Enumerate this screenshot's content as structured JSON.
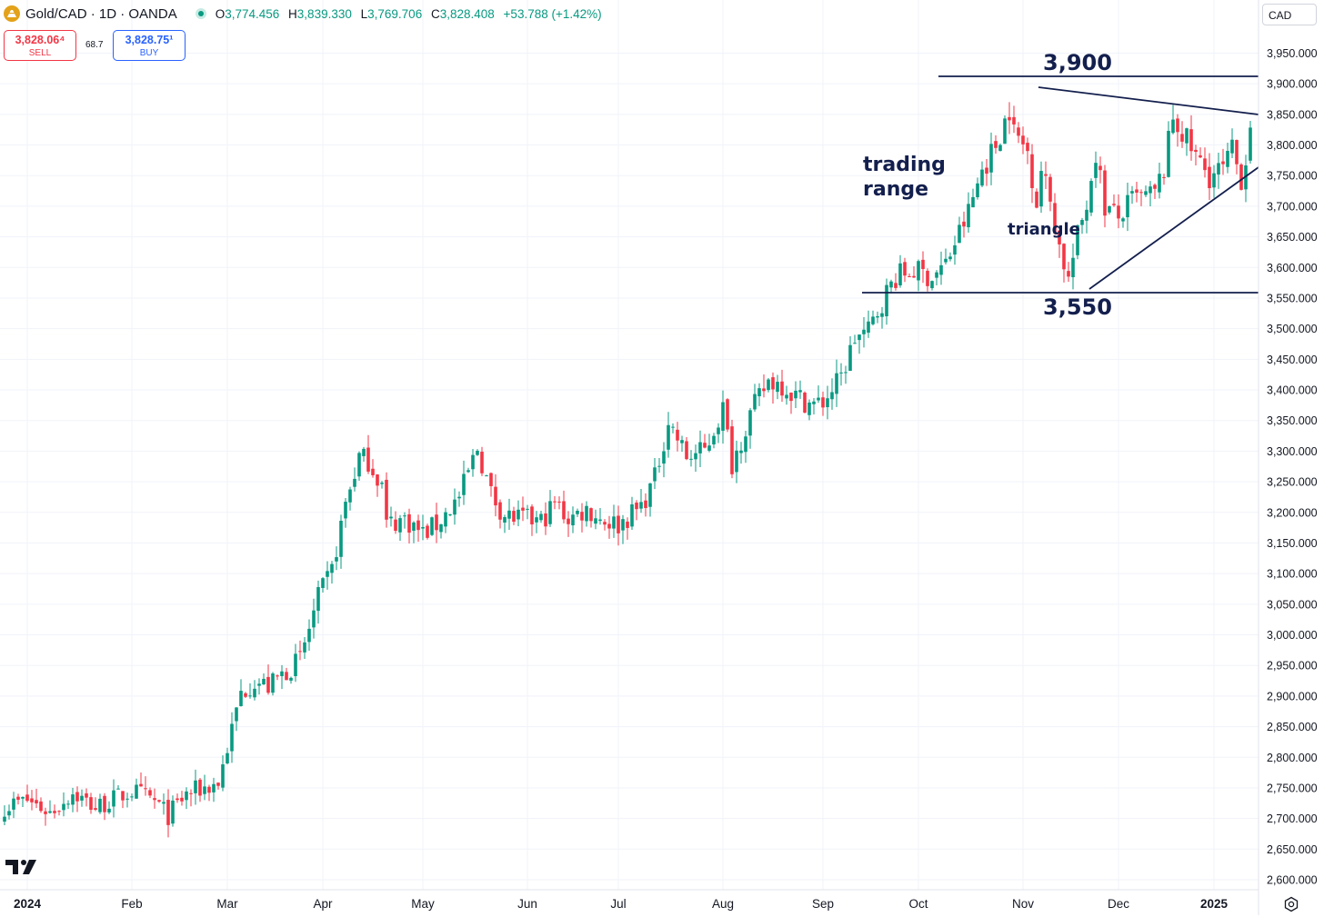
{
  "header": {
    "symbol": "Gold/CAD · 1D · OANDA",
    "open_key": "O",
    "open": "3,774.456",
    "high_key": "H",
    "high": "3,839.330",
    "low_key": "L",
    "low": "3,769.706",
    "close_key": "C",
    "close": "3,828.408",
    "change": "+53.788 (+1.42%)"
  },
  "trade": {
    "sell_price": "3,828.06⁴",
    "sell_label": "SELL",
    "spread": "68.7",
    "buy_price": "3,828.75¹",
    "buy_label": "BUY"
  },
  "currency": "CAD",
  "icons": {
    "logo": "gold-coin-icon",
    "brand": "tradingview-logo-icon",
    "settings": "gear-icon"
  },
  "colors": {
    "up": "#089981",
    "down": "#f23645",
    "annotation": "#131f4d",
    "grid": "#f0f3fa"
  },
  "chart_data": {
    "type": "candlestick",
    "ylim": [
      2580,
      3975
    ],
    "y_ticks": [
      "2,600.000",
      "2,650.000",
      "2,700.000",
      "2,750.000",
      "2,800.000",
      "2,850.000",
      "2,900.000",
      "2,950.000",
      "3,000.000",
      "3,050.000",
      "3,100.000",
      "3,150.000",
      "3,200.000",
      "3,250.000",
      "3,300.000",
      "3,350.000",
      "3,400.000",
      "3,450.000",
      "3,500.000",
      "3,550.000",
      "3,600.000",
      "3,650.000",
      "3,700.000",
      "3,750.000",
      "3,800.000",
      "3,850.000",
      "3,900.000",
      "3,950.000"
    ],
    "x_ticks": [
      {
        "label": "2024",
        "bold": true,
        "index": 5
      },
      {
        "label": "Feb",
        "bold": false,
        "index": 28
      },
      {
        "label": "Mar",
        "bold": false,
        "index": 49
      },
      {
        "label": "Apr",
        "bold": false,
        "index": 70
      },
      {
        "label": "May",
        "bold": false,
        "index": 92
      },
      {
        "label": "Jun",
        "bold": false,
        "index": 115
      },
      {
        "label": "Jul",
        "bold": false,
        "index": 135
      },
      {
        "label": "Aug",
        "bold": false,
        "index": 158
      },
      {
        "label": "Sep",
        "bold": false,
        "index": 180
      },
      {
        "label": "Oct",
        "bold": false,
        "index": 201
      },
      {
        "label": "Nov",
        "bold": false,
        "index": 224
      },
      {
        "label": "Dec",
        "bold": false,
        "index": 245
      },
      {
        "label": "2025",
        "bold": true,
        "index": 266
      }
    ],
    "anchors": [
      [
        0,
        2720
      ],
      [
        5,
        2730
      ],
      [
        10,
        2710
      ],
      [
        15,
        2742
      ],
      [
        20,
        2718
      ],
      [
        28,
        2745
      ],
      [
        33,
        2728
      ],
      [
        36,
        2705
      ],
      [
        40,
        2740
      ],
      [
        47,
        2758
      ],
      [
        50,
        2845
      ],
      [
        52,
        2905
      ],
      [
        55,
        2925
      ],
      [
        58,
        2915
      ],
      [
        61,
        2935
      ],
      [
        65,
        2960
      ],
      [
        69,
        3060
      ],
      [
        72,
        3105
      ],
      [
        75,
        3215
      ],
      [
        78,
        3290
      ],
      [
        80,
        3285
      ],
      [
        83,
        3245
      ],
      [
        84,
        3180
      ],
      [
        88,
        3190
      ],
      [
        92,
        3165
      ],
      [
        95,
        3180
      ],
      [
        100,
        3225
      ],
      [
        104,
        3305
      ],
      [
        107,
        3230
      ],
      [
        110,
        3195
      ],
      [
        113,
        3190
      ],
      [
        118,
        3185
      ],
      [
        121,
        3215
      ],
      [
        124,
        3190
      ],
      [
        128,
        3205
      ],
      [
        131,
        3190
      ],
      [
        135,
        3180
      ],
      [
        140,
        3210
      ],
      [
        143,
        3255
      ],
      [
        146,
        3350
      ],
      [
        150,
        3290
      ],
      [
        154,
        3300
      ],
      [
        158,
        3370
      ],
      [
        160,
        3280
      ],
      [
        164,
        3360
      ],
      [
        168,
        3415
      ],
      [
        171,
        3410
      ],
      [
        174,
        3390
      ],
      [
        178,
        3375
      ],
      [
        180,
        3380
      ],
      [
        184,
        3420
      ],
      [
        187,
        3485
      ],
      [
        190,
        3495
      ],
      [
        193,
        3545
      ],
      [
        196,
        3585
      ],
      [
        200,
        3595
      ],
      [
        204,
        3585
      ],
      [
        207,
        3605
      ],
      [
        209,
        3640
      ],
      [
        212,
        3690
      ],
      [
        215,
        3760
      ],
      [
        218,
        3800
      ],
      [
        221,
        3860
      ],
      [
        222,
        3820
      ],
      [
        225,
        3790
      ],
      [
        227,
        3710
      ],
      [
        228,
        3760
      ],
      [
        230,
        3710
      ],
      [
        232,
        3635
      ],
      [
        234,
        3580
      ],
      [
        236,
        3650
      ],
      [
        238,
        3705
      ],
      [
        240,
        3790
      ],
      [
        242,
        3700
      ],
      [
        245,
        3680
      ],
      [
        248,
        3710
      ],
      [
        251,
        3715
      ],
      [
        253,
        3720
      ],
      [
        255,
        3760
      ],
      [
        257,
        3845
      ],
      [
        259,
        3820
      ],
      [
        262,
        3780
      ],
      [
        265,
        3750
      ],
      [
        268,
        3760
      ],
      [
        270,
        3790
      ],
      [
        272,
        3745
      ],
      [
        273,
        3780
      ],
      [
        274,
        3828
      ]
    ],
    "last_ohlc": [
      3774.456,
      3839.33,
      3769.706,
      3828.408
    ],
    "annotations": {
      "resistance_label": "3,900",
      "support_label": "3,550",
      "range_label_line1": "trading",
      "range_label_line2": "range",
      "triangle_label": "triangle"
    }
  }
}
